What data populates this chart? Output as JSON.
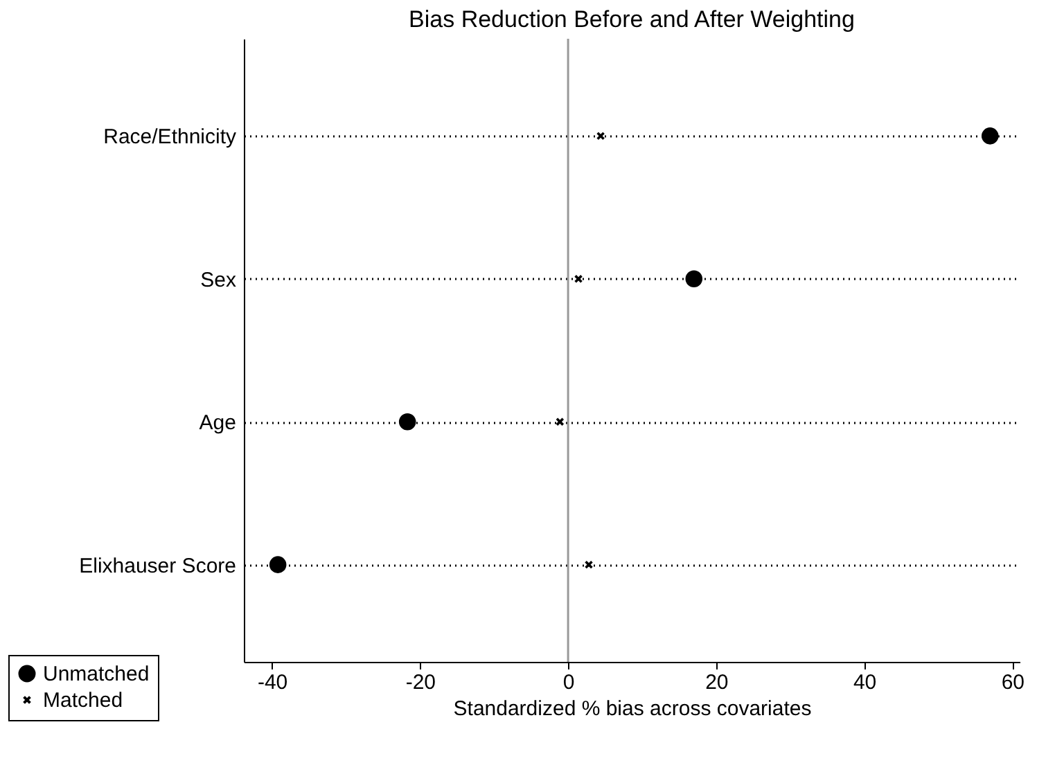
{
  "chart_data": {
    "type": "scatter",
    "title": "Bias Reduction Before and After Weighting",
    "xlabel": "Standardized % bias across covariates",
    "orientation": "horizontal",
    "categories": [
      "Race/Ethnicity",
      "Sex",
      "Age",
      "Elixhauser Score"
    ],
    "series": [
      {
        "name": "Unmatched",
        "color": "#000000",
        "marker": "circle",
        "values": [
          57.0,
          17.0,
          -21.7,
          -39.2
        ]
      },
      {
        "name": "Matched",
        "color": "#000000",
        "marker": "cross",
        "values": [
          4.4,
          1.4,
          -1.1,
          2.8
        ]
      }
    ],
    "xlim": [
      -43.8,
      61
    ],
    "xticks": [
      -40,
      -20,
      0,
      20,
      40,
      60
    ],
    "ref_lines": [
      {
        "axis": "x",
        "value": 0,
        "color": "#999999"
      }
    ],
    "grid": "y",
    "line_style": "dotted",
    "legend": "bottom left"
  }
}
